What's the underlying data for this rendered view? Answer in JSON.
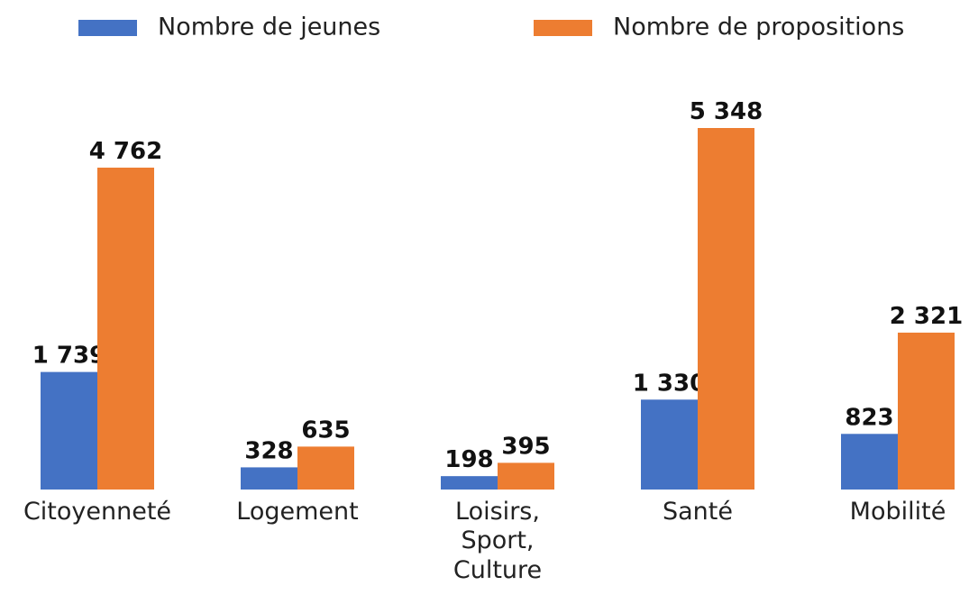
{
  "chart_data": {
    "type": "bar",
    "categories": [
      "Citoyenneté",
      "Logement",
      "Loisirs, Sport, Culture",
      "Santé",
      "Mobilité"
    ],
    "series": [
      {
        "name": "Nombre de jeunes",
        "color": "#4472c4",
        "values": [
          1739,
          328,
          198,
          1330,
          823
        ],
        "value_labels": [
          "1 739",
          "328",
          "198",
          "1 330",
          "823"
        ]
      },
      {
        "name": "Nombre de propositions",
        "color": "#ed7d31",
        "values": [
          4762,
          635,
          395,
          5348,
          2321
        ],
        "value_labels": [
          "4 762",
          "635",
          "395",
          "5 348",
          "2 321"
        ]
      }
    ],
    "legend": "top"
  }
}
